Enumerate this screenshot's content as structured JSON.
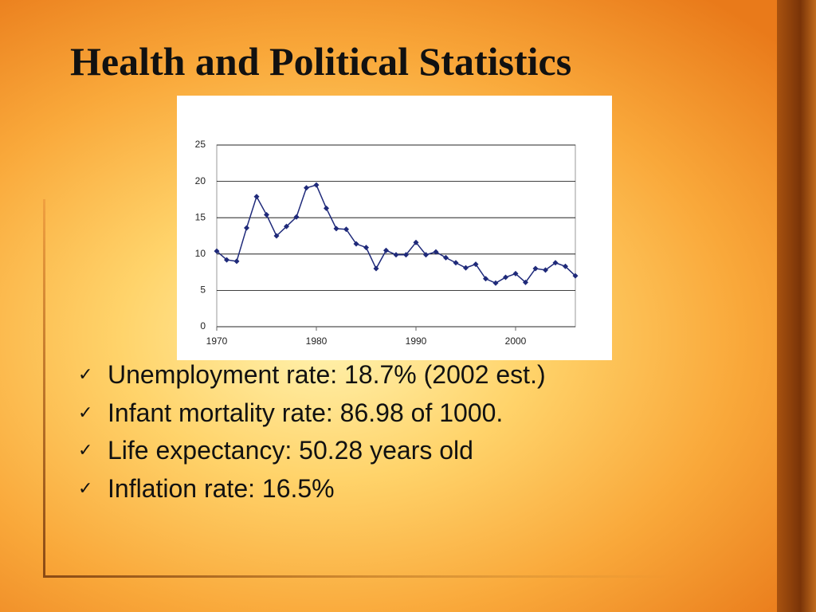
{
  "title": "Health and Political Statistics",
  "chart_data": {
    "type": "line",
    "x": [
      1970,
      1971,
      1972,
      1973,
      1974,
      1975,
      1976,
      1977,
      1978,
      1979,
      1980,
      1981,
      1982,
      1983,
      1984,
      1985,
      1986,
      1987,
      1988,
      1989,
      1990,
      1991,
      1992,
      1993,
      1994,
      1995,
      1996,
      1997,
      1998,
      1999,
      2000,
      2001,
      2002,
      2003,
      2004,
      2005,
      2006
    ],
    "series": [
      {
        "color": "#1f2a7a",
        "values": [
          10.4,
          9.2,
          9.0,
          13.6,
          17.9,
          15.4,
          12.5,
          13.8,
          15.1,
          19.1,
          19.5,
          16.3,
          13.5,
          13.4,
          11.4,
          10.9,
          8.0,
          10.5,
          9.9,
          9.9,
          11.6,
          9.9,
          10.3,
          9.5,
          8.8,
          8.1,
          8.6,
          6.6,
          6.0,
          6.8,
          7.3,
          6.1,
          8.0,
          7.8,
          8.8,
          8.3,
          7.0
        ]
      }
    ],
    "xlim": [
      1970,
      2006
    ],
    "xticks": [
      1970,
      1980,
      1990,
      2000
    ],
    "ylim": [
      0,
      25
    ],
    "yticks": [
      0,
      5,
      10,
      15,
      20,
      25
    ],
    "grid": true
  },
  "bullets": [
    "Unemployment rate: 18.7% (2002 est.)",
    "Infant mortality rate: 86.98 of 1000.",
    "Life expectancy: 50.28 years old",
    "Inflation rate: 16.5%"
  ]
}
